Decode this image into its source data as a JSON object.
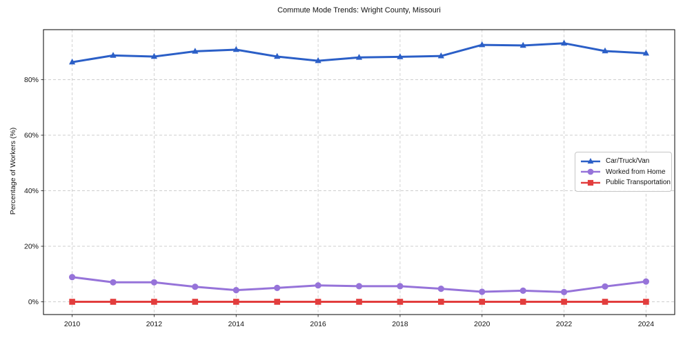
{
  "chart_data": {
    "type": "line",
    "title": "Commute Mode Trends: Wright County, Missouri",
    "xlabel": "",
    "ylabel": "Percentage of Workers (%)",
    "x": [
      2010,
      2011,
      2012,
      2013,
      2014,
      2015,
      2016,
      2017,
      2018,
      2019,
      2020,
      2021,
      2022,
      2023,
      2024
    ],
    "series": [
      {
        "name": "Car/Truck/Van",
        "marker": "triangle",
        "color": "#2b5fc7",
        "values": [
          86.3,
          88.7,
          88.3,
          90.2,
          90.8,
          88.3,
          86.8,
          88.0,
          88.2,
          88.5,
          92.5,
          92.3,
          93.1,
          90.3,
          89.5
        ]
      },
      {
        "name": "Worked from Home",
        "marker": "circle",
        "color": "#9673d9",
        "values": [
          8.9,
          7.0,
          7.0,
          5.4,
          4.2,
          5.0,
          5.9,
          5.6,
          5.6,
          4.7,
          3.6,
          4.0,
          3.5,
          5.5,
          7.3
        ]
      },
      {
        "name": "Public Transportation",
        "marker": "square",
        "color": "#e23d3d",
        "values": [
          0,
          0,
          0,
          0,
          0,
          0,
          0,
          0,
          0,
          0,
          0,
          0,
          0,
          0,
          0
        ]
      }
    ],
    "xticks": {
      "values": [
        2010,
        2012,
        2014,
        2016,
        2018,
        2020,
        2022,
        2024
      ],
      "labels": [
        "2010",
        "2012",
        "2014",
        "2016",
        "2018",
        "2020",
        "2022",
        "2024"
      ]
    },
    "yticks": {
      "values": [
        0,
        20,
        40,
        60,
        80
      ],
      "labels": [
        "0%",
        "20%",
        "40%",
        "60%",
        "80%"
      ]
    },
    "xlim": [
      2009.3,
      2024.7
    ],
    "ylim": [
      -4.6,
      98.0
    ],
    "grid": true,
    "grid_style": "dashed",
    "legend_position": "center right"
  }
}
